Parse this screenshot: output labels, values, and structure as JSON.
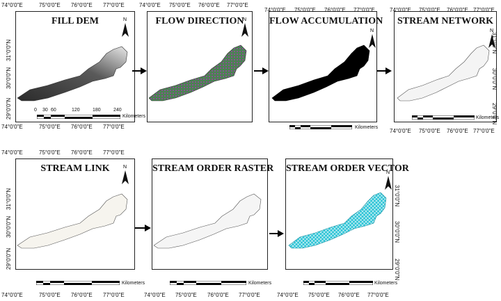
{
  "lon_ticks": [
    "74°0'0\"E",
    "75°0'0\"E",
    "76°0'0\"E",
    "77°0'0\"E"
  ],
  "lat_ticks": [
    "29°0'0\"N",
    "30°0'0\"N",
    "31°0'0\"N"
  ],
  "north_label": "N",
  "scale": {
    "ticks": [
      "0",
      "30",
      "60",
      "120",
      "180",
      "240"
    ],
    "unit": "Kilometers"
  },
  "panels": [
    {
      "title": "FILL DEM",
      "fill": "gradient-grey"
    },
    {
      "title": "FLOW DIRECTION",
      "fill": "green-purple"
    },
    {
      "title": "FLOW ACCUMULATION",
      "fill": "#000000"
    },
    {
      "title": "STREAM NETWORK",
      "fill": "#f4f4f4"
    },
    {
      "title": "STREAM LINK",
      "fill": "#f6f4ee"
    },
    {
      "title": "STREAM ORDER RASTER",
      "fill": "#f5f5f5"
    },
    {
      "title": "STREAM ORDER VECTOR",
      "fill": "#2ec4d6"
    }
  ],
  "colors": {
    "arrow": "#000000",
    "border": "#222222",
    "vector_stream": "#2ec4d6"
  }
}
